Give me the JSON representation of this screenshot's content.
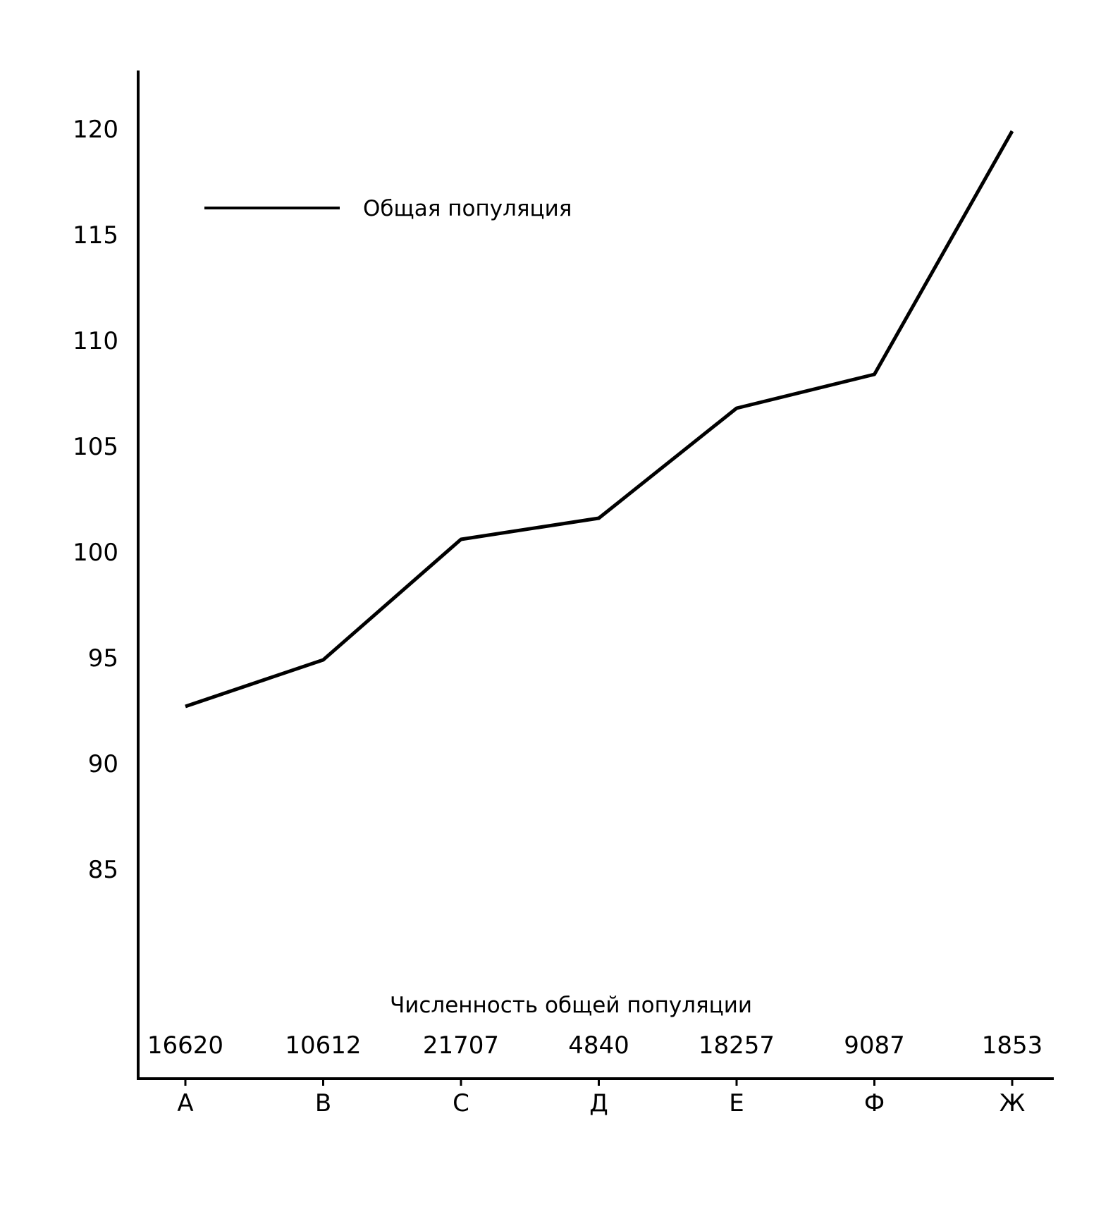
{
  "chart_data": {
    "type": "line",
    "categories": [
      "А",
      "В",
      "С",
      "Д",
      "Е",
      "Ф",
      "Ж"
    ],
    "series": [
      {
        "name": "Общая популяция",
        "values": [
          92.7,
          94.9,
          100.6,
          101.6,
          106.8,
          108.4,
          119.9
        ]
      }
    ],
    "counts": [
      "16620",
      "10612",
      "21707",
      "4840",
      "18257",
      "9087",
      "1853"
    ],
    "xlabel": "Численность общей популяции",
    "ylabel": "",
    "title": "",
    "yticks": [
      "85",
      "90",
      "95",
      "100",
      "105",
      "110",
      "115",
      "120"
    ],
    "ytick_values": [
      85,
      90,
      95,
      100,
      105,
      110,
      115,
      120
    ],
    "legend_position": "top-left",
    "grid": false,
    "line_color": "#000000"
  }
}
